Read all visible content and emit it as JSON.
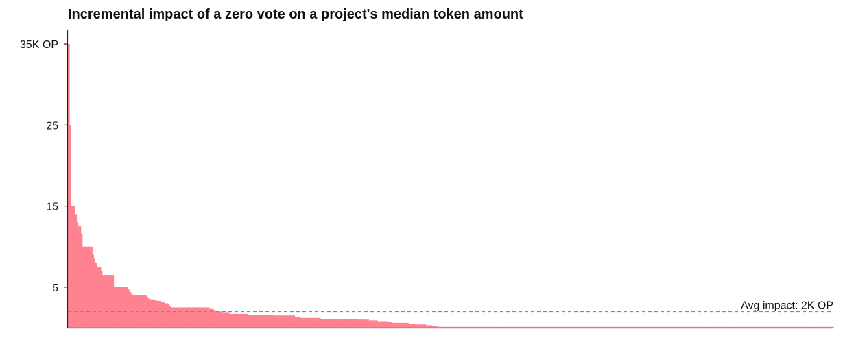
{
  "chart_data": {
    "type": "bar",
    "title": "Incremental impact of a zero vote on a project's median token amount",
    "xlabel": "",
    "ylabel": "",
    "unit": "K OP",
    "ylim": [
      0,
      36.7
    ],
    "y_ticks": [
      {
        "value": 5,
        "label": "5"
      },
      {
        "value": 15,
        "label": "15"
      },
      {
        "value": 25,
        "label": "25"
      },
      {
        "value": 35,
        "label": "35K OP"
      }
    ],
    "grid": false,
    "bar_color": "#ff8291",
    "reference_line": {
      "value": 2.0,
      "label": "Avg impact: 2K OP",
      "color": "#888888"
    },
    "values": [
      35,
      25,
      15,
      15,
      15,
      14,
      13,
      12.5,
      12.5,
      11.5,
      10,
      10,
      10,
      10,
      10,
      10,
      10,
      9,
      8.5,
      8,
      7.5,
      7.5,
      7.5,
      7,
      6.5,
      6.5,
      6.5,
      6.5,
      6.5,
      6.5,
      6.5,
      6.5,
      5,
      5,
      5,
      5,
      5,
      5,
      5,
      5,
      5,
      5,
      4.7,
      4.4,
      4.2,
      4,
      4,
      4,
      4,
      4,
      4,
      4,
      4,
      4,
      4,
      3.8,
      3.6,
      3.5,
      3.5,
      3.5,
      3.4,
      3.4,
      3.3,
      3.3,
      3.3,
      3.2,
      3.2,
      3.1,
      3.0,
      3.0,
      2.9,
      2.7,
      2.5,
      2.5,
      2.5,
      2.5,
      2.5,
      2.5,
      2.5,
      2.5,
      2.5,
      2.5,
      2.5,
      2.5,
      2.5,
      2.5,
      2.5,
      2.5,
      2.5,
      2.5,
      2.5,
      2.5,
      2.5,
      2.5,
      2.5,
      2.5,
      2.5,
      2.5,
      2.5,
      2.4,
      2.4,
      2.3,
      2.2,
      2.1,
      2.1,
      2.0,
      2.0,
      2.0,
      1.9,
      1.9,
      1.9,
      1.9,
      1.9,
      1.7,
      1.7,
      1.7,
      1.7,
      1.7,
      1.7,
      1.7,
      1.7,
      1.7,
      1.7,
      1.7,
      1.7,
      1.7,
      1.6,
      1.6,
      1.6,
      1.6,
      1.6,
      1.6,
      1.6,
      1.6,
      1.6,
      1.6,
      1.6,
      1.6,
      1.6,
      1.6,
      1.6,
      1.6,
      1.6,
      1.6,
      1.5,
      1.5,
      1.5,
      1.5,
      1.5,
      1.5,
      1.5,
      1.5,
      1.5,
      1.5,
      1.5,
      1.5,
      1.5,
      1.5,
      1.5,
      1.3,
      1.3,
      1.3,
      1.3,
      1.2,
      1.2,
      1.2,
      1.2,
      1.2,
      1.2,
      1.2,
      1.2,
      1.2,
      1.2,
      1.2,
      1.2,
      1.2,
      1.2,
      1.1,
      1.1,
      1.1,
      1.1,
      1.1,
      1.1,
      1.1,
      1.1,
      1.1,
      1.1,
      1.1,
      1.1,
      1.1,
      1.1,
      1.1,
      1.1,
      1.1,
      1.1,
      1.1,
      1.1,
      1.1,
      1.1,
      1.1,
      1.1,
      1.1,
      1.1,
      1.0,
      1.0,
      1.0,
      1.0,
      1.0,
      1.0,
      1.0,
      1.0,
      0.9,
      0.9,
      0.9,
      0.9,
      0.9,
      0.9,
      0.8,
      0.8,
      0.8,
      0.8,
      0.8,
      0.8,
      0.8,
      0.7,
      0.7,
      0.7,
      0.6,
      0.6,
      0.6,
      0.6,
      0.6,
      0.6,
      0.6,
      0.6,
      0.6,
      0.6,
      0.6,
      0.6,
      0.5,
      0.5,
      0.5,
      0.5,
      0.5,
      0.4,
      0.4,
      0.4,
      0.4,
      0.4,
      0.4,
      0.4,
      0.3,
      0.3,
      0.3,
      0.3,
      0.2,
      0.2,
      0.2,
      0.2,
      0.1,
      0.1,
      0.1,
      0.1,
      0.1,
      0.1,
      0.1,
      0.1,
      0.1,
      0.1,
      0.1,
      0.1,
      0.1,
      0.1,
      0.1,
      0.1,
      0.1,
      0.1,
      0.1,
      0.1,
      0.1,
      0.1,
      0.1,
      0.1,
      0.1,
      0.1,
      0.1,
      0.1,
      0.1,
      0.1,
      0.1,
      0.1,
      0.1,
      0.1,
      0.1,
      0.1,
      0.1,
      0.1,
      0.1,
      0.1,
      0.1,
      0.1,
      0.1,
      0.1,
      0.1,
      0.1,
      0.1,
      0.1,
      0.1,
      0.1,
      0.1,
      0.1,
      0.1,
      0.1,
      0.1,
      0.1,
      0.1,
      0.1,
      0.1,
      0.1,
      0.1,
      0.1,
      0.1,
      0.1,
      0.1,
      0.1,
      0.1,
      0.1,
      0.1,
      0.1,
      0.1,
      0.1,
      0.1,
      0.1,
      0.1,
      0.1,
      0.1,
      0.1,
      0.1,
      0.1,
      0.1,
      0.1,
      0.1,
      0.1,
      0.1,
      0.1,
      0.1,
      0.1,
      0.1,
      0.1,
      0.1,
      0.1,
      0.1,
      0.1,
      0.1,
      0.1,
      0.1,
      0.1,
      0.1,
      0.1,
      0.1,
      0.1,
      0.1,
      0.1,
      0.1,
      0.1,
      0.1,
      0.1,
      0.1,
      0.1,
      0.1,
      0.1,
      0.1,
      0.1,
      0.1,
      0.1,
      0.1,
      0.1,
      0.1,
      0.1,
      0.1,
      0.1,
      0.1,
      0.1,
      0.1,
      0.1,
      0.1,
      0.1,
      0.1,
      0.1,
      0.1,
      0.1,
      0.1,
      0.1,
      0.1,
      0.1,
      0.1,
      0.1,
      0.1,
      0.1,
      0.1,
      0.1,
      0.1,
      0.1,
      0.1,
      0.1,
      0.1,
      0.1,
      0.1,
      0.1,
      0.1,
      0.1,
      0.1,
      0.1,
      0.1,
      0.1,
      0.1,
      0.1,
      0.1,
      0.1,
      0.1,
      0.1,
      0.1,
      0.1,
      0.1,
      0.1,
      0.1,
      0.1,
      0.1,
      0.1,
      0.1,
      0.1,
      0.1,
      0.1,
      0.1,
      0.1,
      0.1,
      0.1,
      0.1,
      0.1,
      0.1,
      0.1,
      0.1,
      0.1,
      0.1,
      0.1,
      0.1,
      0.1,
      0.1,
      0.1,
      0.1,
      0.1,
      0.1,
      0.1,
      0.1,
      0.1,
      0.1,
      0.1,
      0.1,
      0.1,
      0.1,
      0.1,
      0.1,
      0.1,
      0.1,
      0.1,
      0.1,
      0.1,
      0.1,
      0.1,
      0.1,
      0.1,
      0.1,
      0.1,
      0.1,
      0.1,
      0.1,
      0.1,
      0.1,
      0.1,
      0.1,
      0.1,
      0.1,
      0.1,
      0.1,
      0.1,
      0.1,
      0.1,
      0.1,
      0.1,
      0.1,
      0.1,
      0.1,
      0.1,
      0.1,
      0.1,
      0.1,
      0.1,
      0.1,
      0.1,
      0.1,
      0.1,
      0.1,
      0.1,
      0.1,
      0.1,
      0.1,
      0.1,
      0.1,
      0.1,
      0.1,
      0.1,
      0.1,
      0.1,
      0.1,
      0.1,
      0.1,
      0.1,
      0.1,
      0.1,
      0.1,
      0.1,
      0.1,
      0.1,
      0.1,
      0.1,
      0.1,
      0.1,
      0.1,
      0.1,
      0.1,
      0.1,
      0.1,
      0.1,
      0.1,
      0.1,
      0.1,
      0.1
    ]
  }
}
